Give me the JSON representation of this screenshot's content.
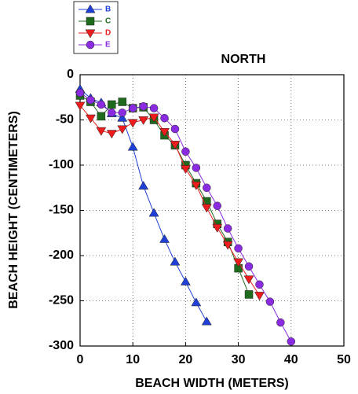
{
  "chart_data": {
    "type": "line",
    "title": "NORTH",
    "x_label": "BEACH WIDTH (METERS)",
    "y_label": "BEACH HEIGHT (CENTIMETERS)",
    "xlim": [
      0,
      50
    ],
    "xticks": [
      0,
      10,
      20,
      30,
      40,
      50
    ],
    "ylim": [
      -300,
      0
    ],
    "yticks": [
      0,
      -50,
      -100,
      -150,
      -200,
      -250,
      -300
    ],
    "grid": true,
    "legend": "top-left",
    "series": [
      {
        "name": "B",
        "color": "#1f3fd6",
        "marker": "triangle-up",
        "x": [
          0,
          2,
          4,
          6,
          8,
          10,
          12,
          14,
          16,
          18,
          20,
          22,
          24
        ],
        "values": [
          -16,
          -26,
          -31,
          -43,
          -48,
          -80,
          -123,
          -153,
          -182,
          -207,
          -229,
          -252,
          -273
        ]
      },
      {
        "name": "C",
        "color": "#1e6b1e",
        "marker": "square",
        "x": [
          0,
          2,
          4,
          6,
          8,
          10,
          12,
          14,
          16,
          18,
          20,
          22,
          24,
          26,
          28,
          30,
          32
        ],
        "values": [
          -23,
          -30,
          -46,
          -33,
          -30,
          -37,
          -36,
          -50,
          -67,
          -78,
          -100,
          -120,
          -140,
          -165,
          -185,
          -214,
          -243
        ]
      },
      {
        "name": "D",
        "color": "#ee1c1c",
        "marker": "triangle-down",
        "x": [
          0,
          2,
          4,
          6,
          8,
          10,
          12,
          14,
          16,
          18,
          20,
          22,
          24,
          26,
          28,
          30,
          32,
          34
        ],
        "values": [
          -34,
          -48,
          -62,
          -65,
          -60,
          -53,
          -50,
          -47,
          -63,
          -77,
          -104,
          -122,
          -147,
          -169,
          -188,
          -207,
          -226,
          -244
        ]
      },
      {
        "name": "E",
        "color": "#8a2be2",
        "marker": "circle",
        "x": [
          0,
          2,
          4,
          6,
          8,
          10,
          12,
          14,
          16,
          18,
          20,
          22,
          24,
          26,
          28,
          30,
          32,
          34,
          36,
          38,
          40
        ],
        "values": [
          -20,
          -28,
          -33,
          -42,
          -42,
          -37,
          -35,
          -37,
          -48,
          -60,
          -85,
          -103,
          -125,
          -145,
          -170,
          -192,
          -212,
          -232,
          -251,
          -274,
          -295
        ]
      }
    ]
  }
}
